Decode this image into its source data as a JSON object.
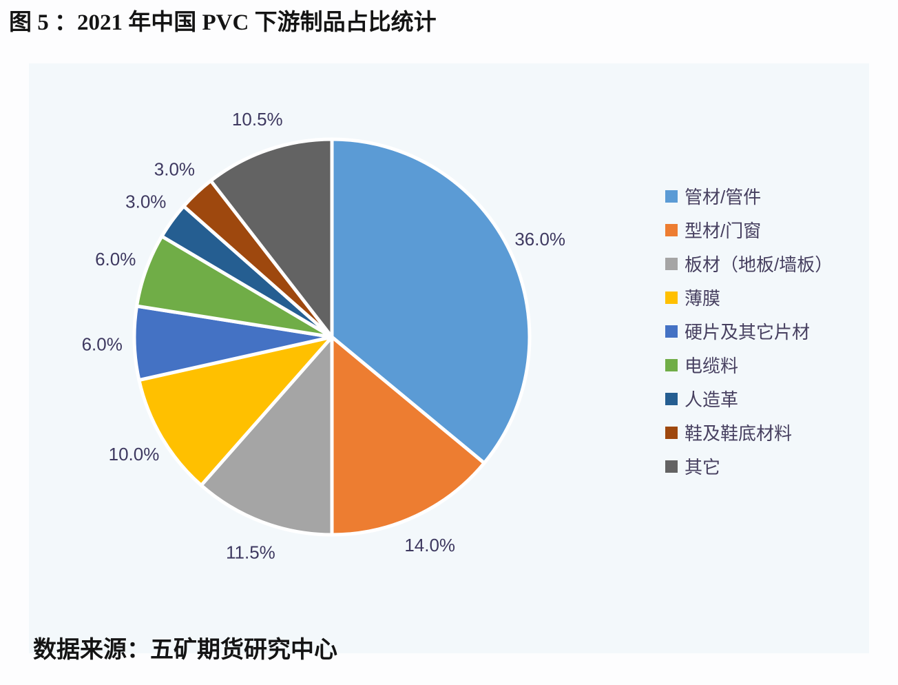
{
  "page": {
    "title": "图 5 ：2021 年中国 PVC 下游制品占比统计",
    "source": "数据来源：五矿期货研究中心"
  },
  "colors": {
    "label_text": "#3E3960",
    "legend_text": "#474060",
    "panel_bg": "#F3F8FB",
    "page_bg": "#FDFDFE",
    "slice_border": "#FFFFFF"
  },
  "chart_data": {
    "type": "pie",
    "title": "2021 年中国 PVC 下游制品占比统计",
    "categories": [
      "管材/管件",
      "型材/门窗",
      "板材（地板/墙板）",
      "薄膜",
      "硬片及其它片材",
      "电缆料",
      "人造革",
      "鞋及鞋底材料",
      "其它"
    ],
    "values": [
      36.0,
      14.0,
      11.5,
      10.0,
      6.0,
      6.0,
      3.0,
      3.0,
      10.5
    ],
    "labels": [
      "36.0%",
      "14.0%",
      "11.5%",
      "10.0%",
      "6.0%",
      "6.0%",
      "3.0%",
      "3.0%",
      "10.5%"
    ],
    "colors": [
      "#5B9BD5",
      "#ED7D31",
      "#A5A5A5",
      "#FFC000",
      "#4472C4",
      "#70AD47",
      "#255E91",
      "#9E480E",
      "#636363"
    ],
    "start_angle_deg": 0,
    "direction": "clockwise",
    "total": 100,
    "data_labels": "outside",
    "legend_position": "right"
  }
}
